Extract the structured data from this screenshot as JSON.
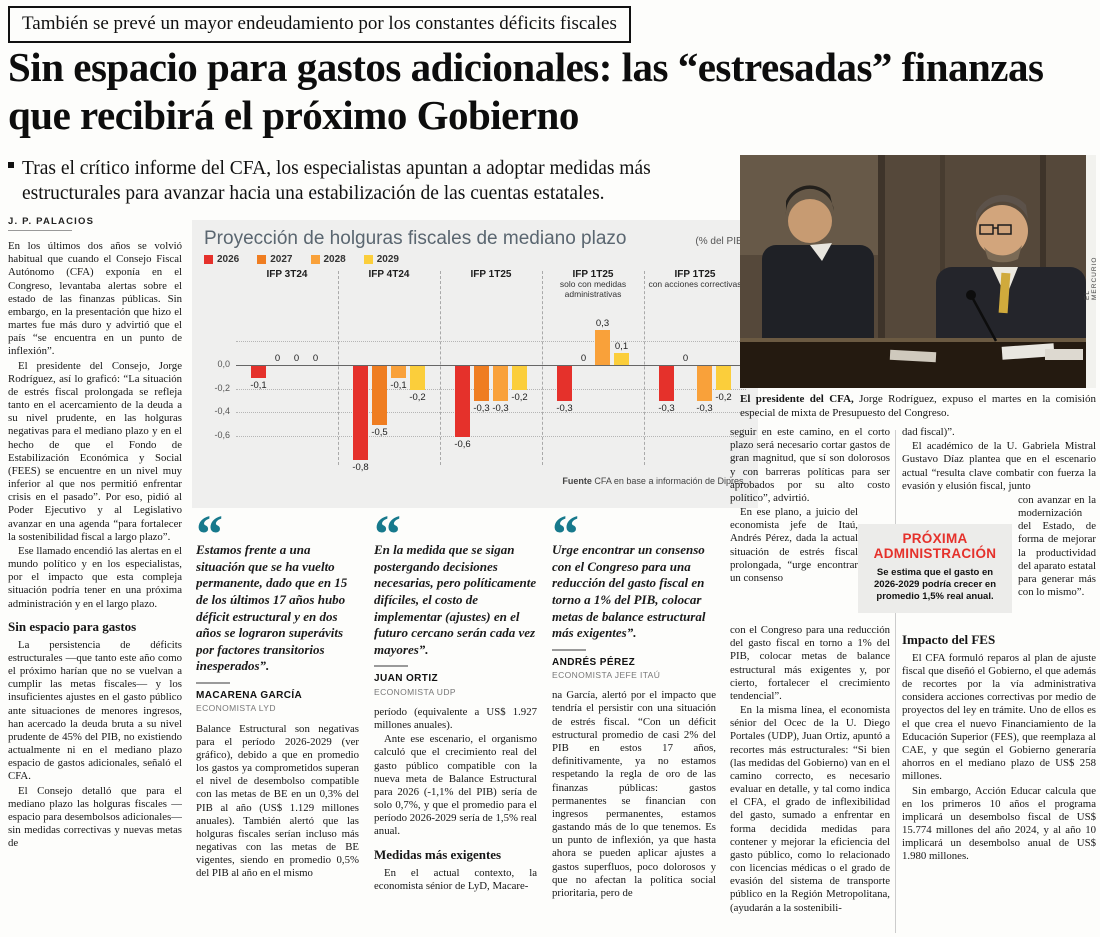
{
  "colors": {
    "accent_red": "#e5312b",
    "quote_teal": "#17798c"
  },
  "kicker": "También se prevé un mayor endeudamiento por los constantes déficits fiscales",
  "headline": "Sin espacio para gastos adicionales: las “estresadas” finanzas que recibirá el próximo Gobierno",
  "deck": "Tras el crítico informe del CFA, los especialistas apuntan a adoptar medidas más estructurales para avanzar hacia una estabilización de las cuentas estatales.",
  "byline": "J. P. PALACIOS",
  "photo": {
    "credit": "EL MERCURIO",
    "caption_lead": "El presidente del CFA,",
    "caption_rest": " Jorge Rodríguez, expuso el martes en la comisión especial de mixta de Presupuesto del Congreso."
  },
  "chart_data": {
    "type": "bar",
    "title": "Proyección de holguras fiscales de mediano plazo",
    "unit_label": "(% del PIB)",
    "source_label": "Fuente",
    "source": "CFA en base a información de Dipres.",
    "ylim": [
      -0.9,
      0.4
    ],
    "yticks": [
      0.2,
      0,
      -0.2,
      -0.4,
      -0.6
    ],
    "series": [
      {
        "name": "2026",
        "color": "#e5312b"
      },
      {
        "name": "2027",
        "color": "#ef7d21"
      },
      {
        "name": "2028",
        "color": "#f9a13a"
      },
      {
        "name": "2029",
        "color": "#fbce3b"
      }
    ],
    "groups": [
      {
        "title": "IFP 3T24",
        "subtitle": "",
        "values": [
          -0.1,
          0,
          0,
          0
        ]
      },
      {
        "title": "IFP 4T24",
        "subtitle": "",
        "values": [
          -0.8,
          -0.5,
          -0.1,
          -0.2
        ]
      },
      {
        "title": "IFP 1T25",
        "subtitle": "",
        "values": [
          -0.6,
          -0.3,
          -0.3,
          -0.2
        ]
      },
      {
        "title": "IFP 1T25",
        "subtitle": "solo con medidas administrativas",
        "values": [
          -0.3,
          0,
          0.3,
          0.1
        ]
      },
      {
        "title": "IFP 1T25",
        "subtitle": "con acciones correctivas",
        "values": [
          -0.3,
          0,
          -0.3,
          -0.2
        ]
      }
    ]
  },
  "quotes": {
    "mark": "“",
    "items": [
      {
        "text": "Estamos frente a una situación que se ha vuelto permanente, dado que en 15 de los últimos 17 años hubo déficit estructural y en dos años se lograron superávits por factores transitorios inesperados”.",
        "name": "MACARENA GARCÍA",
        "role": "ECONOMISTA LYD"
      },
      {
        "text": "En la medida que se sigan postergando decisiones necesarias, pero políticamente difíciles, el costo de implementar (ajustes) en el futuro cercano serán cada vez mayores”.",
        "name": "JUAN ORTIZ",
        "role": "ECONOMISTA UDP"
      },
      {
        "text": "Urge encontrar un consenso con el Congreso para una reducción del gasto fiscal en torno a 1% del PIB, colocar metas de balance estructural más exigentes”.",
        "name": "ANDRÉS PÉREZ",
        "role": "ECONOMISTA JEFE ITAÚ"
      }
    ]
  },
  "sidebar_box": {
    "title": "PRÓXIMA ADMINISTRACIÓN",
    "body": "Se estima que el gasto en 2026-2029 podría crecer en promedio 1,5% real anual."
  },
  "columns": {
    "c1": {
      "intro": [
        "En los últimos dos años se volvió habitual que cuando el Consejo Fiscal Autónomo (CFA) exponía en el Congreso, levantaba alertas sobre el estado de las finanzas públicas. Sin embargo, en la presentación que hizo el martes fue más duro y advirtió que el país “se encuentra en un punto de inflexión”.",
        "El presidente del Consejo, Jorge Rodríguez, así lo graficó: “La situación de estrés fiscal prolongada se refleja tanto en el acercamiento de la deuda a su nivel prudente, en las holguras negativas para el mediano plazo y en el hecho de que el Fondo de Estabilización Económica y Social (FEES) se encuentre en un nivel muy inferior al que nos permitió enfrentar crisis en el pasado”. Por eso, pidió al Poder Ejecutivo y al Legislativo avanzar en una agenda “para fortalecer la sostenibilidad fiscal a largo plazo”.",
        "Ese llamado encendió las alertas en el mundo político y en los especialistas, por el impacto que esta compleja situación podría tener en una próxima administración y en el largo plazo."
      ],
      "subhead": "Sin espacio para gastos",
      "rest": [
        "La persistencia de déficits estructurales —que tanto este año como el próximo harían que no se vuelvan a cumplir las metas fiscales— y los insuficientes ajustes en el gasto público ante situaciones de menores ingresos, han acercado la deuda bruta a su nivel prudente de 45% del PIB, no existiendo actualmente ni en el mediano plazo espacio de gastos adicionales, señaló el CFA.",
        "El Consejo detalló que para el mediano plazo las holguras fiscales —espacio para desembolsos adicionales— sin medidas correctivas y nuevas metas de"
      ]
    },
    "c2": {
      "p1": "Balance Estructural son negativas para el período 2026-2029 (ver gráfico), debido a que en promedio los gastos ya comprometidos superan el nivel de desembolso compatible con las metas de BE en un 0,3% del PIB al año (US$ 1.129 millones anuales). También alertó que las holguras fiscales serían incluso más negativas con las metas de BE vigentes, siendo en promedio 0,5% del PIB al año en el mismo"
    },
    "c3": {
      "p1": "período (equivalente a US$ 1.927 millones anuales).",
      "p2": "Ante ese escenario, el organismo calculó que el crecimiento real del gasto público compatible con la nueva meta de Balance Estructural para 2026 (-1,1% del PIB) sería de solo 0,7%, y que el promedio para el período 2026-2029 sería de 1,5% real anual.",
      "subhead": "Medidas más exigentes",
      "p3": "En el actual contexto, la economista sénior de LyD, Macare-"
    },
    "c4": {
      "p1": "na García, alertó por el impacto que tendría el persistir con una situación de estrés fiscal. “Con un déficit estructural promedio de casi 2% del PIB en estos 17 años, definitivamente, ya no estamos respetando la regla de oro de las finanzas públicas: gastos permanentes se financian con ingresos permanentes, estamos gastando más de lo que tenemos. Es un punto de inflexión, ya que hasta ahora se pueden aplicar ajustes a gastos superfluos, poco dolorosos y que no afectan la política social prioritaria, pero de"
    },
    "c5": {
      "segA": "seguir en este camino, en el corto plazo será necesario cortar gastos de gran magnitud, que sí son dolorosos y con barreras políticas para ser aprobados por su alto costo político”, advirtió.",
      "segB": "En ese plano, a juicio del economista jefe de Itaú, Andrés Pérez, dada la actual situación de estrés fiscal prolongada, “urge encontrar un consenso",
      "segC1": "con el Congreso para una reducción del gasto fiscal en torno a 1% del PIB, colocar metas de balance estructural más exigentes y, por cierto, fortalecer el crecimiento tendencial”.",
      "segC2": "En la misma línea, el economista sénior del Ocec de la U. Diego Portales (UDP), Juan Ortiz, apuntó a recortes más estructurales: “Si bien (las medidas del Gobierno) van en el camino correcto, es necesario evaluar en detalle, y tal como indica el CFA, el grado de inflexibilidad del gasto, sumado a enfrentar en forma decidida medidas para contener y mejorar la eficiencia del gasto público, como lo relacionado con licencias médicas o el grado de evasión del sistema de transporte público en la Región Metropolitana, (ayudarán a la sostenibili-"
    },
    "c6": {
      "segA1": "dad fiscal)”.",
      "segA2": "El académico de la U. Gabriela Mistral Gustavo Díaz plantea que en el escenario actual “resulta clave combatir con fuerza la evasión y elusión fiscal, junto",
      "segB": "con avanzar en la modernización del Estado, de forma de mejorar la productividad del aparato estatal para generar más con lo mismo”.",
      "subhead": "Impacto del FES",
      "segC1": "El CFA formuló reparos al plan de ajuste fiscal que diseñó el Gobierno, el que además de recortes por la vía administrativa considera acciones correctivas por medio de proyectos del ley en trámite. Uno de ellos es el que crea el nuevo Financiamiento de la Educación Superior (FES), que reemplaza al CAE, y que según el Gobierno generaría ahorros en el mediano plazo de US$ 258 millones.",
      "segC2": "Sin embargo, Acción Educar calcula que en los primeros 10 años el programa implicará un desembolso fiscal de US$ 15.774 millones del año 2024, y al año 10 implicará un desembolso anual de US$ 1.980 millones."
    }
  }
}
